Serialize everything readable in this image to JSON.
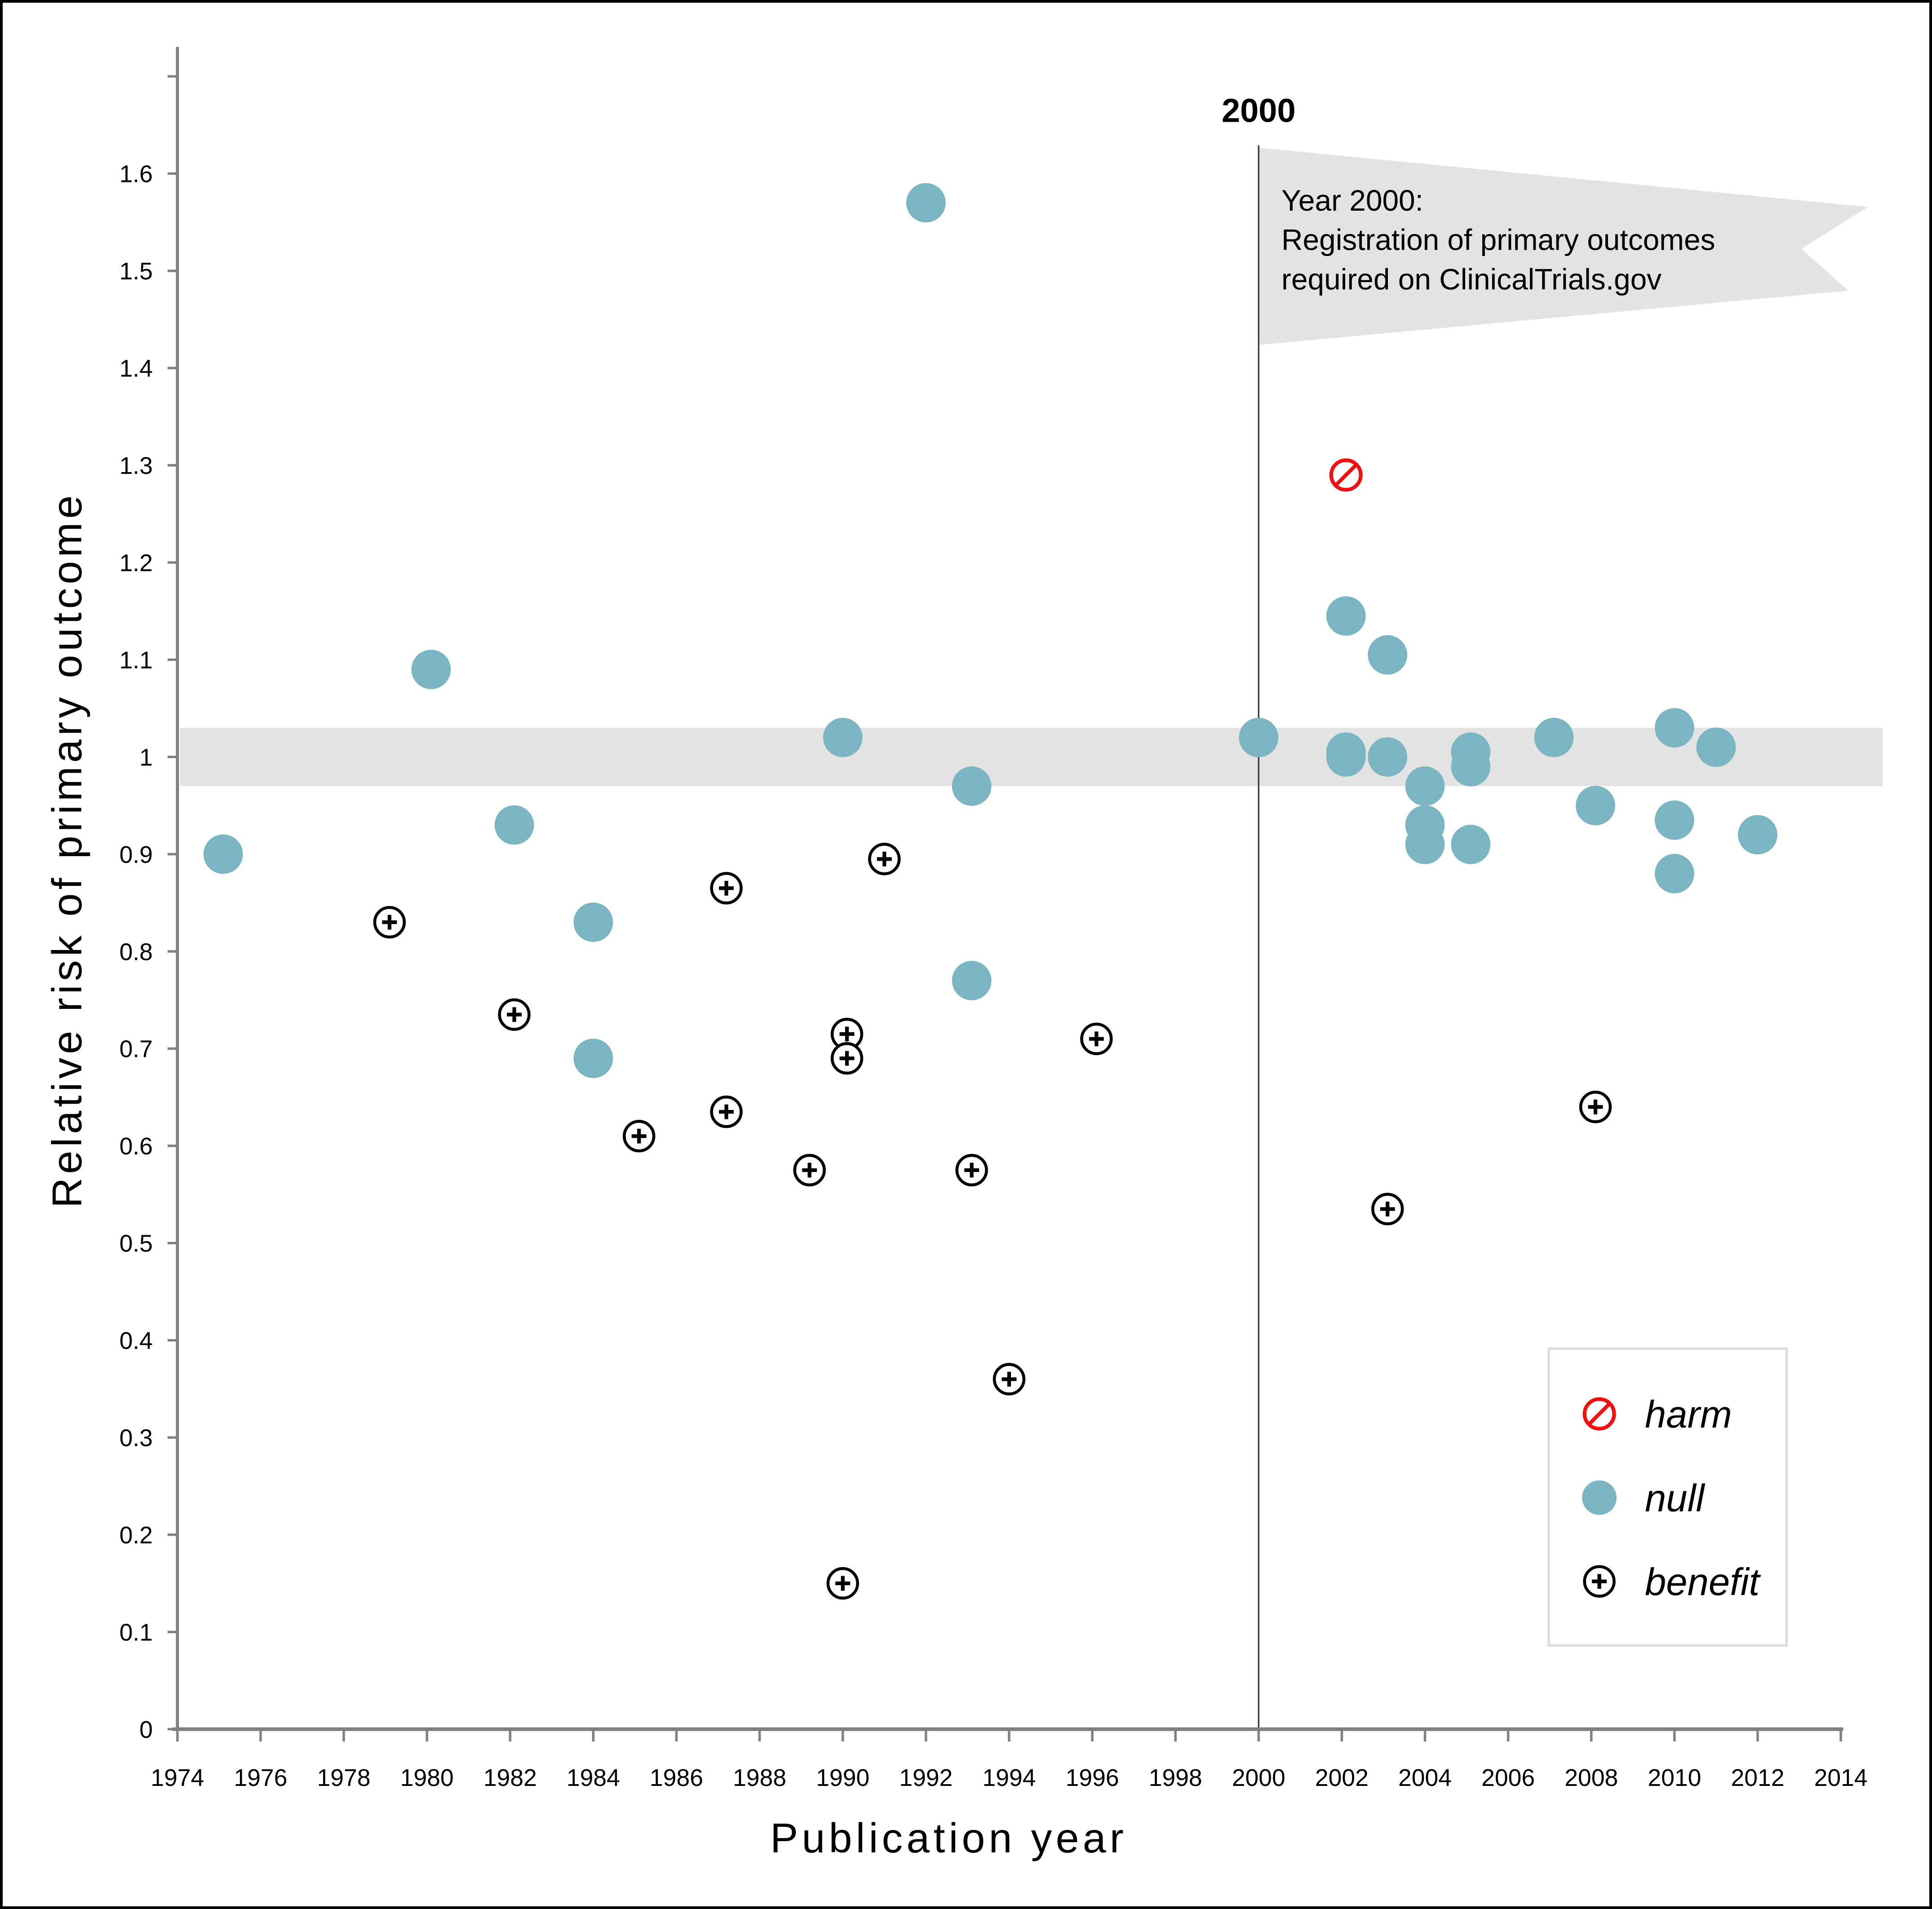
{
  "chart_data": {
    "type": "scatter",
    "title": "",
    "xlabel": "Publication year",
    "ylabel": "Relative risk of primary outcome",
    "xlim": [
      1974,
      2014
    ],
    "ylim": [
      0,
      1.7
    ],
    "xticks": [
      "1974",
      "1976",
      "1978",
      "1980",
      "1982",
      "1984",
      "1986",
      "1988",
      "1990",
      "1992",
      "1994",
      "1996",
      "1998",
      "2000",
      "2002",
      "2004",
      "2006",
      "2008",
      "2010",
      "2012",
      "2014"
    ],
    "yticks": [
      "0",
      "0.1",
      "0.2",
      "0.3",
      "0.4",
      "0.5",
      "0.6",
      "0.7",
      "0.8",
      "0.9",
      "1",
      "1.1",
      "1.2",
      "1.3",
      "1.4",
      "1.5",
      "1.6"
    ],
    "grid": false,
    "null_band": {
      "low": 0.97,
      "high": 1.03
    },
    "reference_line": {
      "x": 2000,
      "label": "2000"
    },
    "annotation": {
      "lines": [
        "Year 2000:",
        "Registration of primary outcomes",
        "required on ClinicalTrials.gov"
      ]
    },
    "legend": {
      "placement": "bottom-right",
      "entries": [
        {
          "key": "harm",
          "label": "harm"
        },
        {
          "key": "null",
          "label": "null"
        },
        {
          "key": "benefit",
          "label": "benefit"
        }
      ]
    },
    "colors": {
      "null": "#7bb5c1",
      "harm": "#ee1111",
      "benefit": "#000000",
      "band": "#e3e3e3",
      "axis": "#808080"
    },
    "series": [
      {
        "name": "harm",
        "points": [
          [
            2002.1,
            1.29
          ]
        ]
      },
      {
        "name": "null",
        "points": [
          [
            1975.1,
            0.9
          ],
          [
            1980.1,
            1.09
          ],
          [
            1982.1,
            0.93
          ],
          [
            1984.0,
            0.83
          ],
          [
            1984.0,
            0.69
          ],
          [
            1990.0,
            1.02
          ],
          [
            1992.0,
            1.57
          ],
          [
            1993.1,
            0.97
          ],
          [
            1993.1,
            0.77
          ],
          [
            2000.0,
            1.02
          ],
          [
            2002.1,
            1.145
          ],
          [
            2002.1,
            1.005
          ],
          [
            2002.1,
            1.0
          ],
          [
            2003.1,
            1.105
          ],
          [
            2003.1,
            1.0
          ],
          [
            2004.0,
            0.97
          ],
          [
            2004.0,
            0.93
          ],
          [
            2004.0,
            0.91
          ],
          [
            2005.1,
            1.005
          ],
          [
            2005.1,
            0.99
          ],
          [
            2005.1,
            0.91
          ],
          [
            2007.1,
            1.02
          ],
          [
            2008.1,
            0.95
          ],
          [
            2010.0,
            1.03
          ],
          [
            2010.0,
            0.935
          ],
          [
            2010.0,
            0.88
          ],
          [
            2011.0,
            1.01
          ],
          [
            2012.0,
            0.92
          ]
        ]
      },
      {
        "name": "benefit",
        "points": [
          [
            1979.1,
            0.83
          ],
          [
            1982.1,
            0.735
          ],
          [
            1985.1,
            0.61
          ],
          [
            1987.2,
            0.865
          ],
          [
            1987.2,
            0.635
          ],
          [
            1989.2,
            0.575
          ],
          [
            1990.1,
            0.715
          ],
          [
            1990.1,
            0.69
          ],
          [
            1990.0,
            0.15
          ],
          [
            1991.0,
            0.895
          ],
          [
            1993.1,
            0.575
          ],
          [
            1994.0,
            0.36
          ],
          [
            1996.1,
            0.71
          ],
          [
            2003.1,
            0.535
          ],
          [
            2008.1,
            0.64
          ]
        ]
      }
    ]
  }
}
